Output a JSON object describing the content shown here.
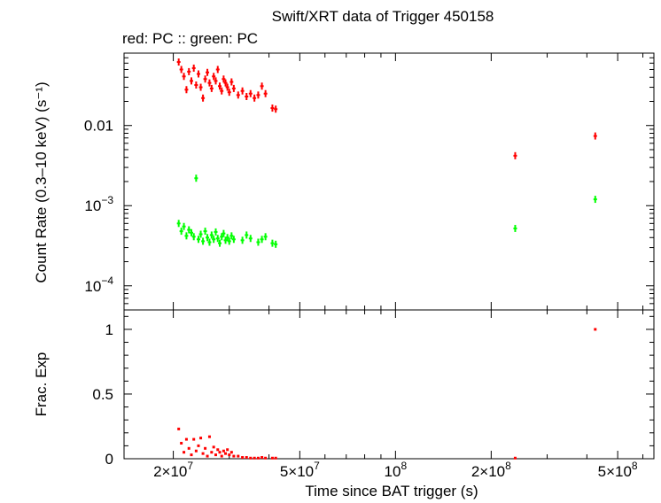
{
  "header": {
    "title": "Swift/XRT data of Trigger 450158",
    "subtitle": "red: PC  :: green: PC"
  },
  "colors": {
    "red": "#ff0000",
    "green": "#00ff00",
    "axis": "#000000"
  },
  "chart_data": [
    {
      "type": "scatter",
      "panel": "top",
      "xscale": "log",
      "yscale": "log",
      "xlim": [
        14000000,
        650000000
      ],
      "ylim": [
        5e-05,
        0.08
      ],
      "ylabel": "Count Rate (0.3–10 keV) (s⁻¹)",
      "yticks": [
        {
          "value": 0.0001,
          "base": "10",
          "exp": "−4"
        },
        {
          "value": 0.001,
          "base": "10",
          "exp": "−3"
        },
        {
          "value": 0.01,
          "label": "0.01"
        }
      ],
      "series": [
        {
          "color": "red",
          "points": [
            {
              "x": 20800000,
              "y": 0.062
            },
            {
              "x": 21200000,
              "y": 0.05
            },
            {
              "x": 21600000,
              "y": 0.041
            },
            {
              "x": 22000000,
              "y": 0.028
            },
            {
              "x": 22400000,
              "y": 0.047
            },
            {
              "x": 22800000,
              "y": 0.036
            },
            {
              "x": 23200000,
              "y": 0.052
            },
            {
              "x": 23600000,
              "y": 0.032
            },
            {
              "x": 24000000,
              "y": 0.044
            },
            {
              "x": 24400000,
              "y": 0.03
            },
            {
              "x": 24800000,
              "y": 0.022
            },
            {
              "x": 25200000,
              "y": 0.038
            },
            {
              "x": 25600000,
              "y": 0.046
            },
            {
              "x": 26000000,
              "y": 0.034
            },
            {
              "x": 26400000,
              "y": 0.029
            },
            {
              "x": 26800000,
              "y": 0.041
            },
            {
              "x": 27200000,
              "y": 0.036
            },
            {
              "x": 27600000,
              "y": 0.05
            },
            {
              "x": 28000000,
              "y": 0.031
            },
            {
              "x": 28400000,
              "y": 0.027
            },
            {
              "x": 28800000,
              "y": 0.038
            },
            {
              "x": 29200000,
              "y": 0.034
            },
            {
              "x": 29600000,
              "y": 0.03
            },
            {
              "x": 30000000,
              "y": 0.026
            },
            {
              "x": 30500000,
              "y": 0.035
            },
            {
              "x": 31000000,
              "y": 0.029
            },
            {
              "x": 32000000,
              "y": 0.024
            },
            {
              "x": 33000000,
              "y": 0.027
            },
            {
              "x": 34000000,
              "y": 0.023
            },
            {
              "x": 35000000,
              "y": 0.025
            },
            {
              "x": 36000000,
              "y": 0.022
            },
            {
              "x": 37000000,
              "y": 0.024
            },
            {
              "x": 38000000,
              "y": 0.031
            },
            {
              "x": 39000000,
              "y": 0.025
            },
            {
              "x": 41000000,
              "y": 0.0165
            },
            {
              "x": 42000000,
              "y": 0.016
            },
            {
              "x": 238000000,
              "y": 0.0042
            },
            {
              "x": 425000000,
              "y": 0.0074
            }
          ]
        },
        {
          "color": "green",
          "points": [
            {
              "x": 20800000,
              "y": 0.0006
            },
            {
              "x": 21200000,
              "y": 0.00048
            },
            {
              "x": 21600000,
              "y": 0.00055
            },
            {
              "x": 22000000,
              "y": 0.00042
            },
            {
              "x": 22400000,
              "y": 0.0005
            },
            {
              "x": 22800000,
              "y": 0.00046
            },
            {
              "x": 23200000,
              "y": 0.00041
            },
            {
              "x": 23600000,
              "y": 0.0022
            },
            {
              "x": 24000000,
              "y": 0.00038
            },
            {
              "x": 24400000,
              "y": 0.00044
            },
            {
              "x": 24800000,
              "y": 0.00036
            },
            {
              "x": 25200000,
              "y": 0.00048
            },
            {
              "x": 25600000,
              "y": 0.0004
            },
            {
              "x": 26000000,
              "y": 0.00035
            },
            {
              "x": 26400000,
              "y": 0.00043
            },
            {
              "x": 26800000,
              "y": 0.00038
            },
            {
              "x": 27200000,
              "y": 0.00047
            },
            {
              "x": 27600000,
              "y": 0.00039
            },
            {
              "x": 28000000,
              "y": 0.00034
            },
            {
              "x": 28400000,
              "y": 0.00041
            },
            {
              "x": 28800000,
              "y": 0.00045
            },
            {
              "x": 29200000,
              "y": 0.00037
            },
            {
              "x": 29600000,
              "y": 0.0004
            },
            {
              "x": 30000000,
              "y": 0.00036
            },
            {
              "x": 30500000,
              "y": 0.00042
            },
            {
              "x": 31000000,
              "y": 0.00038
            },
            {
              "x": 33000000,
              "y": 0.00037
            },
            {
              "x": 34000000,
              "y": 0.00043
            },
            {
              "x": 35000000,
              "y": 0.00039
            },
            {
              "x": 37000000,
              "y": 0.00035
            },
            {
              "x": 38000000,
              "y": 0.00038
            },
            {
              "x": 39000000,
              "y": 0.00041
            },
            {
              "x": 41000000,
              "y": 0.00034
            },
            {
              "x": 42000000,
              "y": 0.00033
            },
            {
              "x": 238000000,
              "y": 0.00052
            },
            {
              "x": 425000000,
              "y": 0.0012
            }
          ]
        }
      ]
    },
    {
      "type": "scatter",
      "panel": "bottom",
      "xscale": "log",
      "xlim": [
        14000000,
        650000000
      ],
      "ylim": [
        0,
        1.15
      ],
      "xlabel": "Time since BAT trigger (s)",
      "ylabel": "Frac. Exp",
      "yticks": [
        {
          "value": 0,
          "label": "0"
        },
        {
          "value": 0.5,
          "label": "0.5"
        },
        {
          "value": 1,
          "label": "1"
        }
      ],
      "xticks": [
        {
          "value": 20000000,
          "mant": "2×",
          "base": "10",
          "exp": "7"
        },
        {
          "value": 50000000,
          "mant": "5×",
          "base": "10",
          "exp": "7"
        },
        {
          "value": 100000000,
          "mant": "",
          "base": "10",
          "exp": "8"
        },
        {
          "value": 200000000,
          "mant": "2×",
          "base": "10",
          "exp": "8"
        },
        {
          "value": 500000000,
          "mant": "5×",
          "base": "10",
          "exp": "8"
        }
      ],
      "series": [
        {
          "color": "red",
          "points": [
            {
              "x": 20800000,
              "y": 0.23
            },
            {
              "x": 21200000,
              "y": 0.12
            },
            {
              "x": 21600000,
              "y": 0.05
            },
            {
              "x": 22000000,
              "y": 0.15
            },
            {
              "x": 22400000,
              "y": 0.08
            },
            {
              "x": 22800000,
              "y": 0.03
            },
            {
              "x": 23200000,
              "y": 0.15
            },
            {
              "x": 23600000,
              "y": 0.06
            },
            {
              "x": 24000000,
              "y": 0.1
            },
            {
              "x": 24400000,
              "y": 0.16
            },
            {
              "x": 24800000,
              "y": 0.04
            },
            {
              "x": 25200000,
              "y": 0.08
            },
            {
              "x": 25600000,
              "y": 0.02
            },
            {
              "x": 26000000,
              "y": 0.17
            },
            {
              "x": 26400000,
              "y": 0.05
            },
            {
              "x": 26800000,
              "y": 0.09
            },
            {
              "x": 27200000,
              "y": 0.03
            },
            {
              "x": 27600000,
              "y": 0.07
            },
            {
              "x": 28000000,
              "y": 0.05
            },
            {
              "x": 28400000,
              "y": 0.02
            },
            {
              "x": 28800000,
              "y": 0.06
            },
            {
              "x": 29200000,
              "y": 0.04
            },
            {
              "x": 29600000,
              "y": 0.07
            },
            {
              "x": 30000000,
              "y": 0.03
            },
            {
              "x": 30500000,
              "y": 0.05
            },
            {
              "x": 31000000,
              "y": 0.02
            },
            {
              "x": 32000000,
              "y": 0.02
            },
            {
              "x": 33000000,
              "y": 0.01
            },
            {
              "x": 34000000,
              "y": 0.01
            },
            {
              "x": 35000000,
              "y": 0.005
            },
            {
              "x": 36000000,
              "y": 0.005
            },
            {
              "x": 37000000,
              "y": 0.005
            },
            {
              "x": 38000000,
              "y": 0.01
            },
            {
              "x": 39000000,
              "y": 0.005
            },
            {
              "x": 41000000,
              "y": 0.005
            },
            {
              "x": 42000000,
              "y": 0.005
            },
            {
              "x": 238000000,
              "y": 0.005
            },
            {
              "x": 425000000,
              "y": 1.0
            }
          ]
        }
      ]
    }
  ]
}
